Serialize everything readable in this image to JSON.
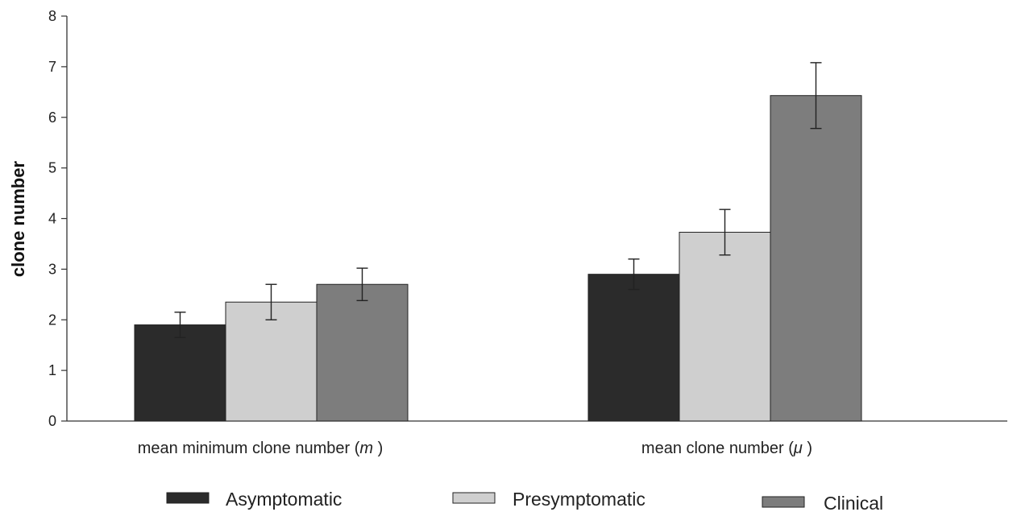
{
  "chart_data": {
    "type": "bar",
    "title": "",
    "xlabel": "",
    "ylabel": "clone number",
    "ylim": [
      0,
      8
    ],
    "yticks": [
      0,
      1,
      2,
      3,
      4,
      5,
      6,
      7,
      8
    ],
    "grid": false,
    "legend_position": "bottom",
    "categories": [
      {
        "prefix": "mean minimum clone number (",
        "symbol": "m",
        "suffix": ")"
      },
      {
        "prefix": "mean clone number (",
        "symbol": "μ",
        "suffix": ")"
      }
    ],
    "series": [
      {
        "name": "Asymptomatic",
        "values": [
          1.9,
          2.9
        ],
        "errors": [
          0.25,
          0.3
        ],
        "color": "#2b2b2b"
      },
      {
        "name": "Presymptomatic",
        "values": [
          2.35,
          3.73
        ],
        "errors": [
          0.35,
          0.45
        ],
        "color": "#cfcfcf"
      },
      {
        "name": "Clinical",
        "values": [
          2.7,
          6.43
        ],
        "errors": [
          0.32,
          0.65
        ],
        "color": "#7d7d7d"
      }
    ]
  }
}
